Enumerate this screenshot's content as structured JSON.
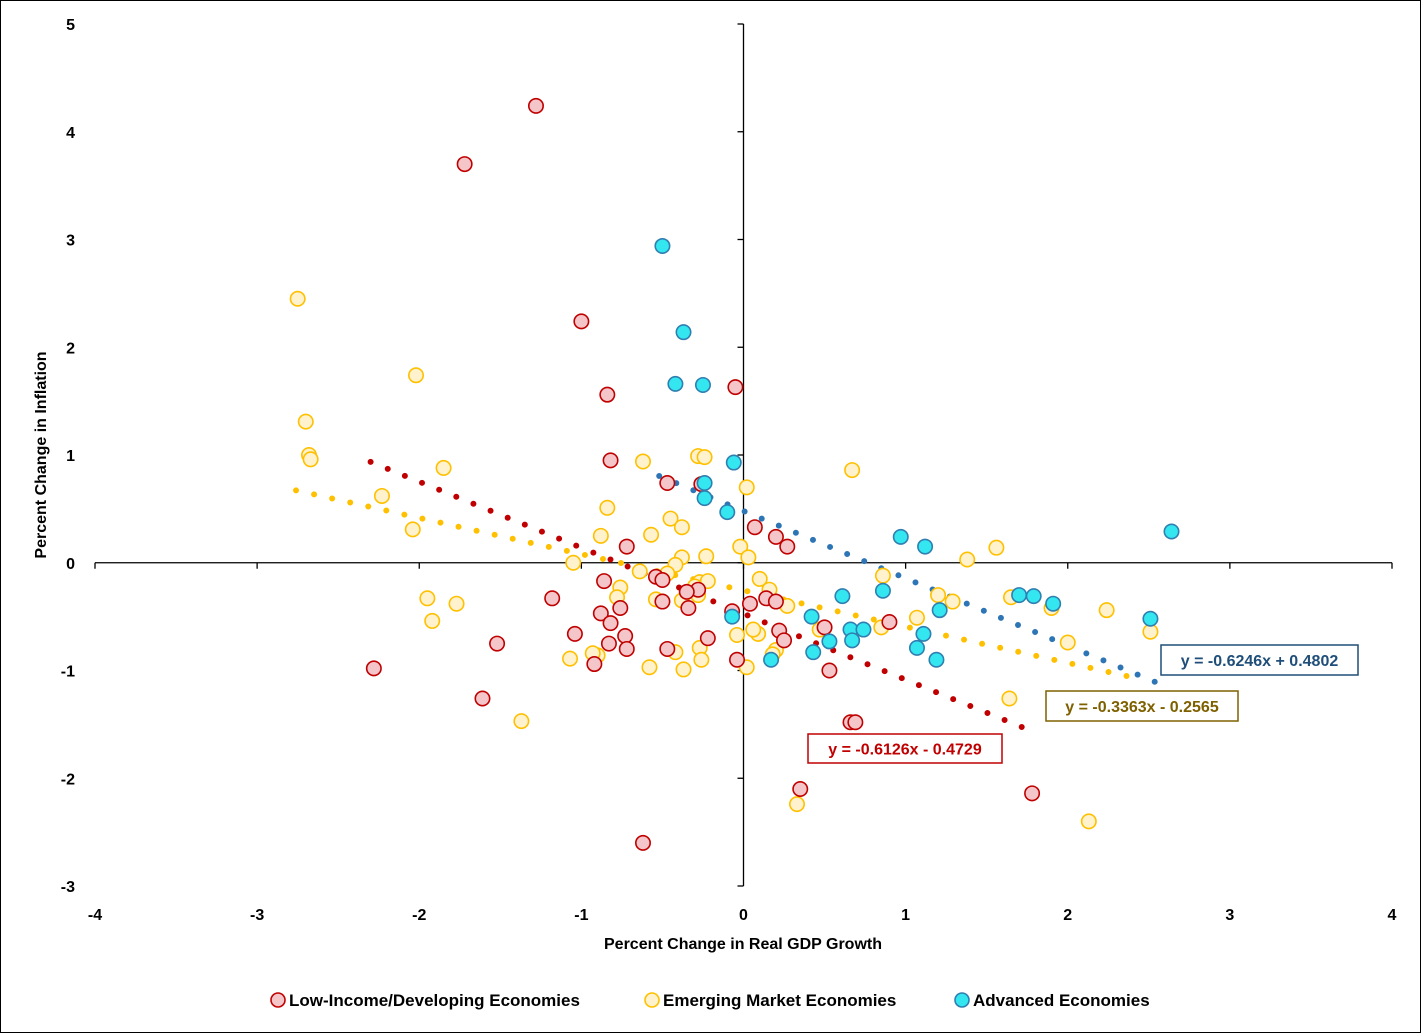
{
  "chart_data": {
    "type": "scatter",
    "title": "",
    "xlabel": "Percent Change in Real GDP Growth",
    "ylabel": "Percent Change in Inflation",
    "xlim": [
      -4,
      4
    ],
    "ylim": [
      -3,
      5
    ],
    "xticks": [
      "-4",
      "-3",
      "-2",
      "-1",
      "0",
      "1",
      "2",
      "3",
      "4"
    ],
    "yticks": [
      "-3",
      "-2",
      "-1",
      "0",
      "1",
      "2",
      "3",
      "4",
      "5"
    ],
    "grid": false,
    "legend_position": "bottom",
    "series": [
      {
        "name": "Low-Income/Developing Economies",
        "fill": "#f4c6c9",
        "stroke": "#c00000",
        "trend_color": "#c00000",
        "trendline": {
          "slope": -0.6126,
          "intercept": -0.4729,
          "x_range": [
            -2.3,
            1.72
          ]
        },
        "equation": "y = -0.6126x - 0.4729",
        "points": [
          [
            -1.28,
            4.24
          ],
          [
            -1.72,
            3.7
          ],
          [
            -1.0,
            2.24
          ],
          [
            -0.84,
            1.56
          ],
          [
            -0.05,
            1.63
          ],
          [
            -0.82,
            0.95
          ],
          [
            -0.47,
            0.74
          ],
          [
            -0.26,
            0.73
          ],
          [
            0.07,
            0.33
          ],
          [
            0.2,
            0.24
          ],
          [
            0.27,
            0.15
          ],
          [
            -0.72,
            0.15
          ],
          [
            -0.54,
            -0.13
          ],
          [
            -0.5,
            -0.16
          ],
          [
            -0.86,
            -0.17
          ],
          [
            -0.28,
            -0.25
          ],
          [
            -0.35,
            -0.27
          ],
          [
            -1.18,
            -0.33
          ],
          [
            -0.5,
            -0.36
          ],
          [
            -0.34,
            -0.42
          ],
          [
            -0.76,
            -0.42
          ],
          [
            -0.88,
            -0.47
          ],
          [
            -0.07,
            -0.45
          ],
          [
            0.04,
            -0.38
          ],
          [
            0.14,
            -0.33
          ],
          [
            0.2,
            -0.36
          ],
          [
            -0.82,
            -0.56
          ],
          [
            0.22,
            -0.63
          ],
          [
            0.5,
            -0.6
          ],
          [
            0.9,
            -0.55
          ],
          [
            -1.04,
            -0.66
          ],
          [
            -0.73,
            -0.68
          ],
          [
            -0.83,
            -0.75
          ],
          [
            -1.52,
            -0.75
          ],
          [
            -0.47,
            -0.8
          ],
          [
            -0.72,
            -0.8
          ],
          [
            -0.22,
            -0.7
          ],
          [
            0.25,
            -0.72
          ],
          [
            -0.92,
            -0.94
          ],
          [
            -0.04,
            -0.9
          ],
          [
            0.53,
            -1.0
          ],
          [
            -2.28,
            -0.98
          ],
          [
            -1.61,
            -1.26
          ],
          [
            0.66,
            -1.48
          ],
          [
            0.69,
            -1.48
          ],
          [
            0.35,
            -2.1
          ],
          [
            1.78,
            -2.14
          ],
          [
            -0.62,
            -2.6
          ]
        ]
      },
      {
        "name": "Emerging Market Economies",
        "fill": "#fff2cc",
        "stroke": "#ffc000",
        "trend_color": "#ffc000",
        "trendline": {
          "slope": -0.3363,
          "intercept": -0.2565,
          "x_range": [
            -2.76,
            2.45
          ]
        },
        "equation": "y = -0.3363x - 0.2565",
        "points": [
          [
            -2.75,
            2.45
          ],
          [
            -2.02,
            1.74
          ],
          [
            -2.7,
            1.31
          ],
          [
            -2.68,
            1.0
          ],
          [
            -2.67,
            0.96
          ],
          [
            -1.85,
            0.88
          ],
          [
            -2.23,
            0.62
          ],
          [
            -2.04,
            0.31
          ],
          [
            -0.62,
            0.94
          ],
          [
            -0.28,
            0.99
          ],
          [
            -0.24,
            0.98
          ],
          [
            0.67,
            0.86
          ],
          [
            0.02,
            0.7
          ],
          [
            -0.84,
            0.51
          ],
          [
            -0.45,
            0.41
          ],
          [
            -0.38,
            0.33
          ],
          [
            -0.57,
            0.26
          ],
          [
            -0.88,
            0.25
          ],
          [
            -1.05,
            0.0
          ],
          [
            -0.02,
            0.15
          ],
          [
            0.03,
            0.05
          ],
          [
            -0.38,
            0.05
          ],
          [
            -0.23,
            0.06
          ],
          [
            -0.42,
            -0.02
          ],
          [
            -0.64,
            -0.08
          ],
          [
            -0.47,
            -0.1
          ],
          [
            0.1,
            -0.15
          ],
          [
            0.16,
            -0.25
          ],
          [
            -0.76,
            -0.23
          ],
          [
            -0.27,
            -0.18
          ],
          [
            -0.22,
            -0.17
          ],
          [
            -0.3,
            -0.22
          ],
          [
            -0.28,
            -0.3
          ],
          [
            -0.78,
            -0.32
          ],
          [
            -0.54,
            -0.34
          ],
          [
            -0.38,
            -0.35
          ],
          [
            0.86,
            -0.12
          ],
          [
            1.2,
            -0.3
          ],
          [
            1.29,
            -0.36
          ],
          [
            1.38,
            0.03
          ],
          [
            1.56,
            0.14
          ],
          [
            1.65,
            -0.32
          ],
          [
            1.9,
            -0.42
          ],
          [
            2.24,
            -0.44
          ],
          [
            -1.95,
            -0.33
          ],
          [
            -1.77,
            -0.38
          ],
          [
            -1.92,
            -0.54
          ],
          [
            0.27,
            -0.4
          ],
          [
            0.47,
            -0.62
          ],
          [
            0.85,
            -0.6
          ],
          [
            1.07,
            -0.51
          ],
          [
            0.09,
            -0.66
          ],
          [
            0.06,
            -0.62
          ],
          [
            -0.04,
            -0.67
          ],
          [
            0.2,
            -0.81
          ],
          [
            0.18,
            -0.85
          ],
          [
            -0.27,
            -0.79
          ],
          [
            -0.42,
            -0.83
          ],
          [
            -0.26,
            -0.9
          ],
          [
            -0.37,
            -0.99
          ],
          [
            -0.58,
            -0.97
          ],
          [
            -0.9,
            -0.86
          ],
          [
            -0.93,
            -0.84
          ],
          [
            -1.07,
            -0.89
          ],
          [
            0.02,
            -0.97
          ],
          [
            2.0,
            -0.74
          ],
          [
            2.51,
            -0.64
          ],
          [
            1.64,
            -1.26
          ],
          [
            -1.37,
            -1.47
          ],
          [
            0.33,
            -2.24
          ],
          [
            2.13,
            -2.4
          ]
        ]
      },
      {
        "name": "Advanced Economies",
        "fill": "#33e6f0",
        "stroke": "#2f7fb0",
        "trend_color": "#2e75b6",
        "trendline": {
          "slope": -0.6246,
          "intercept": 0.4802,
          "x_range": [
            -0.52,
            2.58
          ]
        },
        "equation": "y = -0.6246x + 0.4802",
        "points": [
          [
            -0.5,
            2.94
          ],
          [
            -0.37,
            2.14
          ],
          [
            -0.42,
            1.66
          ],
          [
            -0.25,
            1.65
          ],
          [
            -0.06,
            0.93
          ],
          [
            -0.24,
            0.74
          ],
          [
            -0.24,
            0.6
          ],
          [
            -0.1,
            0.47
          ],
          [
            0.97,
            0.24
          ],
          [
            1.12,
            0.15
          ],
          [
            2.64,
            0.29
          ],
          [
            0.61,
            -0.31
          ],
          [
            1.7,
            -0.3
          ],
          [
            1.79,
            -0.31
          ],
          [
            1.91,
            -0.38
          ],
          [
            1.21,
            -0.44
          ],
          [
            2.51,
            -0.52
          ],
          [
            0.42,
            -0.5
          ],
          [
            -0.07,
            -0.5
          ],
          [
            0.66,
            -0.62
          ],
          [
            0.74,
            -0.62
          ],
          [
            1.11,
            -0.66
          ],
          [
            0.53,
            -0.73
          ],
          [
            0.67,
            -0.72
          ],
          [
            0.43,
            -0.83
          ],
          [
            1.07,
            -0.79
          ],
          [
            1.19,
            -0.9
          ],
          [
            0.17,
            -0.9
          ],
          [
            0.86,
            -0.26
          ]
        ]
      }
    ]
  }
}
